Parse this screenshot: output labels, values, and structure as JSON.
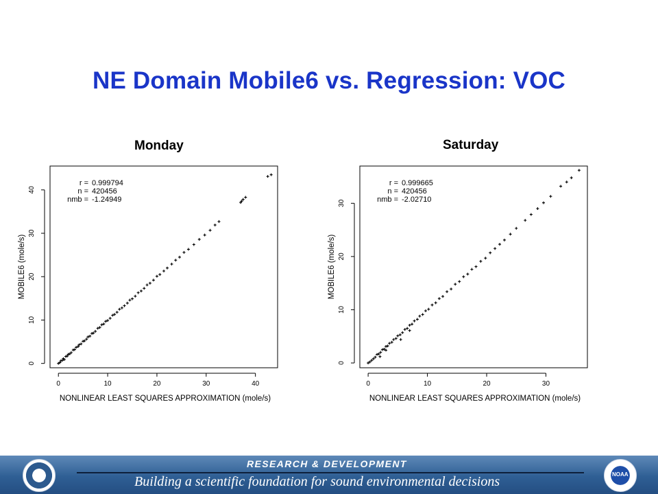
{
  "slide": {
    "title": "NE Domain Mobile6 vs. Regression: VOC"
  },
  "chart_data": [
    {
      "type": "scatter",
      "title": "Monday",
      "xlabel": "NONLINEAR LEAST SQUARES APPROXIMATION (mole/s)",
      "ylabel": "MOBILE6 (mole/s)",
      "xlim": [
        -1.7,
        44.5
      ],
      "ylim": [
        -1.0,
        45.5
      ],
      "xticks": [
        0,
        10,
        20,
        30,
        40
      ],
      "yticks": [
        0,
        10,
        20,
        30,
        40
      ],
      "grid": false,
      "stats": [
        {
          "label": "r =",
          "value": "0.999794"
        },
        {
          "label": "n =",
          "value": "420456"
        },
        {
          "label": "nmb =",
          "value": "-1.24949"
        }
      ],
      "series": [
        {
          "values": [
            [
              0,
              0
            ],
            [
              0.3,
              0.2
            ],
            [
              0.5,
              0.6
            ],
            [
              0.8,
              0.7
            ],
            [
              1,
              1.1
            ],
            [
              1.2,
              0.9
            ],
            [
              1.5,
              1.6
            ],
            [
              1.8,
              1.7
            ],
            [
              2,
              2.1
            ],
            [
              2.3,
              2.2
            ],
            [
              2.6,
              2.5
            ],
            [
              3,
              3.1
            ],
            [
              3.3,
              3.2
            ],
            [
              3.6,
              3.7
            ],
            [
              4,
              3.9
            ],
            [
              4.2,
              4.3
            ],
            [
              4.6,
              4.5
            ],
            [
              5,
              5.1
            ],
            [
              5.3,
              5.2
            ],
            [
              5.7,
              5.6
            ],
            [
              6,
              6.1
            ],
            [
              6.4,
              6.3
            ],
            [
              6.8,
              6.9
            ],
            [
              7.1,
              7
            ],
            [
              7.5,
              7.4
            ],
            [
              8,
              8.1
            ],
            [
              8.4,
              8.3
            ],
            [
              8.8,
              8.9
            ],
            [
              9.2,
              9.1
            ],
            [
              9.6,
              9.7
            ],
            [
              10,
              9.9
            ],
            [
              10.5,
              10.4
            ],
            [
              11,
              11.1
            ],
            [
              11.4,
              11.3
            ],
            [
              11.9,
              11.8
            ],
            [
              12.4,
              12.5
            ],
            [
              12.9,
              12.8
            ],
            [
              13.4,
              13.3
            ],
            [
              14,
              13.9
            ],
            [
              14.5,
              14.6
            ],
            [
              15,
              14.9
            ],
            [
              15.6,
              15.5
            ],
            [
              16.2,
              16.3
            ],
            [
              16.8,
              16.7
            ],
            [
              17.4,
              17.3
            ],
            [
              18,
              18.1
            ],
            [
              18.6,
              18.5
            ],
            [
              19.3,
              19.2
            ],
            [
              20,
              20.1
            ],
            [
              20.6,
              20.5
            ],
            [
              21.4,
              21.3
            ],
            [
              22.1,
              22
            ],
            [
              23,
              22.9
            ],
            [
              23.8,
              23.8
            ],
            [
              24.6,
              24.5
            ],
            [
              25.5,
              25.6
            ],
            [
              26.4,
              26.3
            ],
            [
              27.5,
              27.4
            ],
            [
              28.6,
              28.6
            ],
            [
              29.7,
              29.6
            ],
            [
              30.8,
              30.7
            ],
            [
              31.8,
              31.9
            ],
            [
              32.6,
              32.7
            ],
            [
              37,
              37.1
            ],
            [
              37.5,
              37.8
            ],
            [
              37.2,
              37.4
            ],
            [
              38,
              38.3
            ],
            [
              42.5,
              43.1
            ],
            [
              43.2,
              43.5
            ]
          ]
        }
      ]
    },
    {
      "type": "scatter",
      "title": "Saturday",
      "xlabel": "NONLINEAR LEAST SQUARES APPROXIMATION (mole/s)",
      "ylabel": "MOBILE6 (mole/s)",
      "xlim": [
        -1.4,
        37.0
      ],
      "ylim": [
        -0.9,
        37.0
      ],
      "xticks": [
        0,
        10,
        20,
        30
      ],
      "yticks": [
        0,
        10,
        20,
        30
      ],
      "grid": false,
      "stats": [
        {
          "label": "r =",
          "value": "0.999665"
        },
        {
          "label": "n =",
          "value": "420456"
        },
        {
          "label": "nmb =",
          "value": "-2.02710"
        }
      ],
      "series": [
        {
          "values": [
            [
              0,
              0
            ],
            [
              0.3,
              0.2
            ],
            [
              0.6,
              0.5
            ],
            [
              0.9,
              0.8
            ],
            [
              1.2,
              1.1
            ],
            [
              1.5,
              1.6
            ],
            [
              1.8,
              1.7
            ],
            [
              2.1,
              2
            ],
            [
              2.4,
              2.5
            ],
            [
              2.7,
              2.6
            ],
            [
              3,
              3.1
            ],
            [
              3.3,
              3.2
            ],
            [
              3.6,
              3.7
            ],
            [
              4,
              3.9
            ],
            [
              4.3,
              4.4
            ],
            [
              4.7,
              4.6
            ],
            [
              5,
              5.1
            ],
            [
              5.4,
              5.3
            ],
            [
              5.8,
              5.7
            ],
            [
              6.2,
              6.3
            ],
            [
              6.6,
              6.5
            ],
            [
              7,
              7.1
            ],
            [
              7.4,
              7.3
            ],
            [
              7.8,
              7.9
            ],
            [
              8.3,
              8.2
            ],
            [
              8.7,
              8.8
            ],
            [
              9.2,
              9.1
            ],
            [
              9.7,
              9.8
            ],
            [
              10.2,
              10.1
            ],
            [
              10.8,
              10.9
            ],
            [
              11.4,
              11.3
            ],
            [
              12,
              12.1
            ],
            [
              12.6,
              12.5
            ],
            [
              13.3,
              13.4
            ],
            [
              14,
              13.9
            ],
            [
              14.7,
              14.8
            ],
            [
              15.4,
              15.3
            ],
            [
              16.1,
              16.2
            ],
            [
              16.8,
              16.7
            ],
            [
              17.5,
              17.6
            ],
            [
              18.2,
              18.1
            ],
            [
              19,
              19.1
            ],
            [
              19.8,
              19.7
            ],
            [
              20.6,
              20.7
            ],
            [
              21.4,
              21.5
            ],
            [
              22.2,
              22.3
            ],
            [
              23,
              23.1
            ],
            [
              24,
              24.2
            ],
            [
              25,
              25.3
            ],
            [
              26.5,
              26.8
            ],
            [
              27.5,
              27.9
            ],
            [
              28.6,
              29
            ],
            [
              29.6,
              30.1
            ],
            [
              30.8,
              31.3
            ],
            [
              32.5,
              33.2
            ],
            [
              33.5,
              34
            ],
            [
              34.3,
              34.8
            ],
            [
              35.6,
              36.2
            ],
            [
              2,
              1.2
            ],
            [
              3,
              2.4
            ],
            [
              5.5,
              4.4
            ],
            [
              7,
              6.1
            ]
          ]
        }
      ]
    }
  ],
  "footer": {
    "heading": "RESEARCH & DEVELOPMENT",
    "tagline": "Building a scientific foundation for sound environmental decisions",
    "logos": [
      {
        "icon": "epa-seal-icon"
      },
      {
        "icon": "noaa-logo-icon",
        "text": "NOAA"
      }
    ]
  }
}
